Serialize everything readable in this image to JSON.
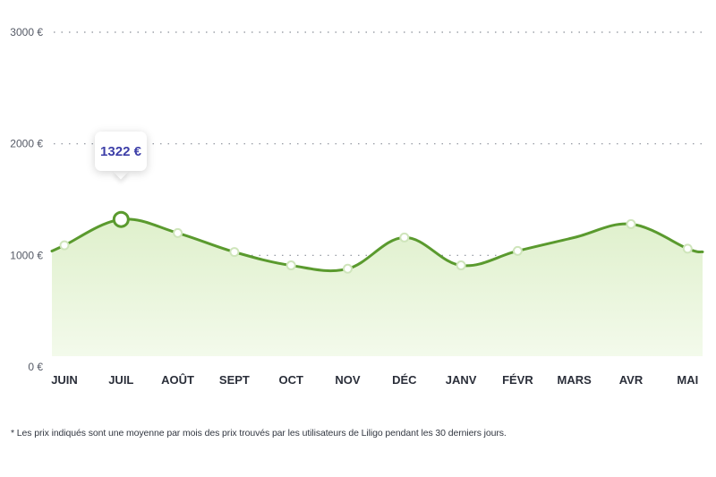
{
  "chart_data": {
    "type": "area",
    "categories": [
      "JUIN",
      "JUIL",
      "AOÛT",
      "SEPT",
      "OCT",
      "NOV",
      "DÉC",
      "JANV",
      "FÉVR",
      "MARS",
      "AVR",
      "MAI"
    ],
    "values": [
      1090,
      1322,
      1200,
      1030,
      910,
      880,
      1160,
      910,
      1040,
      null,
      1280,
      1060
    ],
    "y_ticks": [
      "0 €",
      "1000 €",
      "2000 €",
      "3000 €"
    ],
    "ylim": [
      0,
      3000
    ],
    "grid": true,
    "colors": {
      "line": "#5a9a2e",
      "fill": "#e6f3d8",
      "point_fill": "#ffffff"
    },
    "highlight": {
      "category": "JUIL",
      "label": "1322 €"
    }
  },
  "footnote": "* Les prix indiqués sont une moyenne par mois des prix trouvés par les utilisateurs de Liligo pendant les 30 derniers jours."
}
